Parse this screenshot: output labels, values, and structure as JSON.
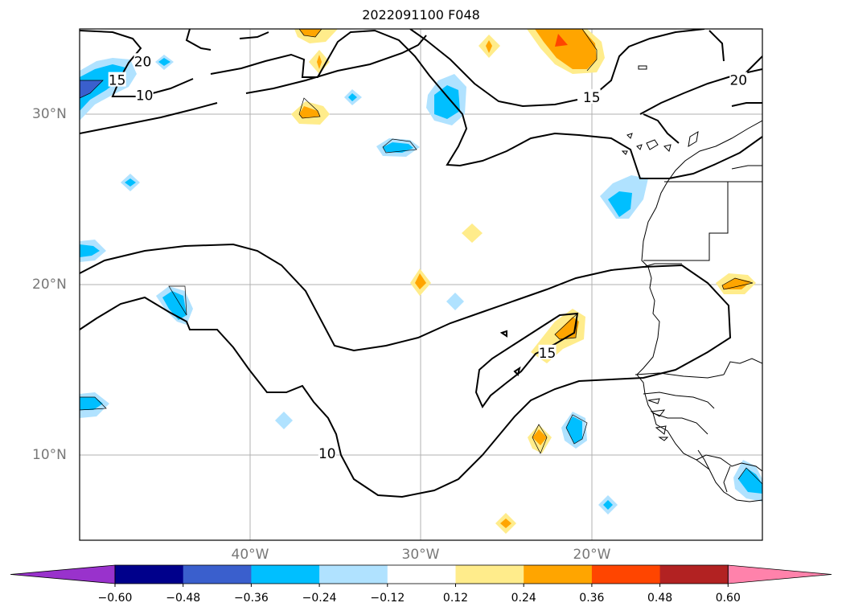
{
  "title": "2022091100 F048",
  "map": {
    "extent": {
      "lon": [
        -50,
        -10
      ],
      "lat": [
        5,
        35
      ]
    },
    "gridlines": true,
    "lat_labels": [
      {
        "lat": 30,
        "text": "30°N"
      },
      {
        "lat": 20,
        "text": "20°N"
      },
      {
        "lat": 10,
        "text": "10°N"
      }
    ],
    "lon_labels": [
      {
        "lon": -40,
        "text": "40°W"
      },
      {
        "lon": -30,
        "text": "30°W"
      },
      {
        "lon": -20,
        "text": "20°W"
      }
    ],
    "contour_labels": [
      {
        "text": "20",
        "lon": -46.3,
        "lat": 33.1
      },
      {
        "text": "15",
        "lon": -47.8,
        "lat": 32.0
      },
      {
        "text": "10",
        "lon": -46.2,
        "lat": 31.1
      },
      {
        "text": "15",
        "lon": -20.0,
        "lat": 31.0
      },
      {
        "text": "20",
        "lon": -11.4,
        "lat": 32.0
      },
      {
        "text": "15",
        "lon": -22.6,
        "lat": 16.0
      },
      {
        "text": "10",
        "lon": -35.5,
        "lat": 10.1
      }
    ]
  },
  "colorbar": {
    "colors": [
      "#9932cc",
      "#00008b",
      "#3a5fcd",
      "#00bfff",
      "#b0e2ff",
      "#ffffff",
      "#ffec8b",
      "#ffa500",
      "#ff4500",
      "#b22222",
      "#ff82ab"
    ],
    "ticks": [
      "−0.60",
      "−0.48",
      "−0.36",
      "−0.24",
      "−0.12",
      "0.12",
      "0.24",
      "0.36",
      "0.48",
      "0.60"
    ]
  }
}
